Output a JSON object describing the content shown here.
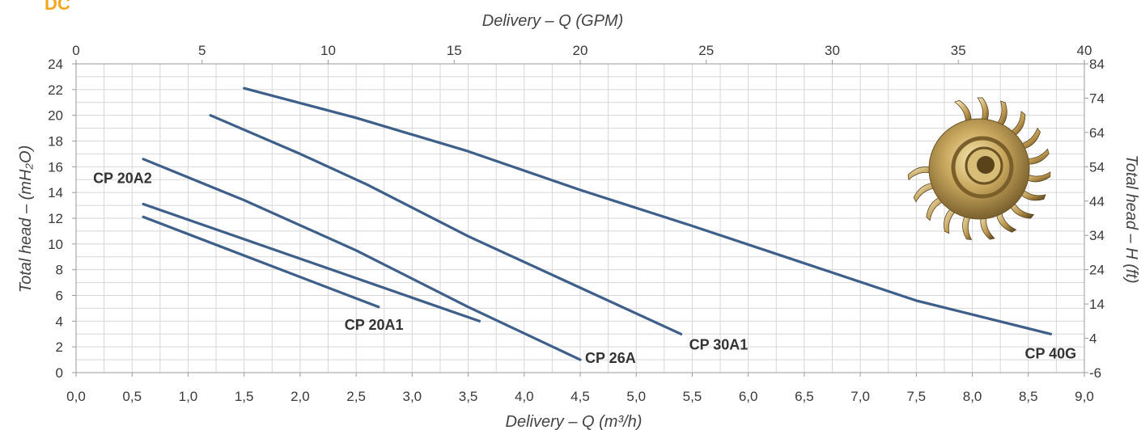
{
  "page": {
    "label": "DC"
  },
  "colors": {
    "curve": "#3e5f8a",
    "grid": "#d7d7d7",
    "axis_text": "#3a3a3a",
    "label_text": "#333333",
    "accent": "#f0a81c"
  },
  "chart_data": {
    "type": "line",
    "xlabel": "Delivery – Q (m³/h)",
    "x2label": "Delivery – Q (GPM)",
    "ylabel": "Total head – (mH₂O)",
    "y2label": "Total head – H (ft)",
    "xlim": [
      0,
      9
    ],
    "ylim": [
      0,
      24
    ],
    "x2lim": [
      0,
      40
    ],
    "y2lim": [
      -6,
      84
    ],
    "x_ticks": [
      "0,0",
      "0,5",
      "1,0",
      "1,5",
      "2,0",
      "2,5",
      "3,0",
      "3,5",
      "4,0",
      "4,5",
      "5,0",
      "5,5",
      "6,0",
      "6,5",
      "7,0",
      "7,5",
      "8,0",
      "8,5",
      "9,0"
    ],
    "y_ticks": [
      0,
      2,
      4,
      6,
      8,
      10,
      12,
      14,
      16,
      18,
      20,
      22,
      24
    ],
    "x2_ticks": [
      0,
      5,
      10,
      15,
      20,
      25,
      30,
      35,
      40
    ],
    "y2_ticks": [
      -6,
      4,
      14,
      24,
      34,
      44,
      54,
      64,
      74,
      84
    ],
    "grid": true,
    "series": [
      {
        "name": "CP 20A1",
        "x": [
          0.6,
          2.7
        ],
        "y": [
          12.1,
          5.1
        ]
      },
      {
        "name": "CP 20A2",
        "x": [
          0.6,
          3.6
        ],
        "y": [
          13.1,
          4.0
        ]
      },
      {
        "name": "CP 26A",
        "x": [
          0.6,
          1.5,
          2.5,
          3.5,
          4.5
        ],
        "y": [
          16.6,
          13.4,
          9.5,
          5.1,
          1.0
        ]
      },
      {
        "name": "CP 30A1",
        "x": [
          1.2,
          2.0,
          2.6,
          3.5,
          4.5,
          5.4
        ],
        "y": [
          20.0,
          17.0,
          14.6,
          10.6,
          6.6,
          3.0
        ]
      },
      {
        "name": "CP 40G",
        "x": [
          1.5,
          2.5,
          3.5,
          4.5,
          5.5,
          6.5,
          7.5,
          8.7
        ],
        "y": [
          22.1,
          19.8,
          17.2,
          14.2,
          11.4,
          8.5,
          5.6,
          3.0
        ]
      }
    ]
  }
}
